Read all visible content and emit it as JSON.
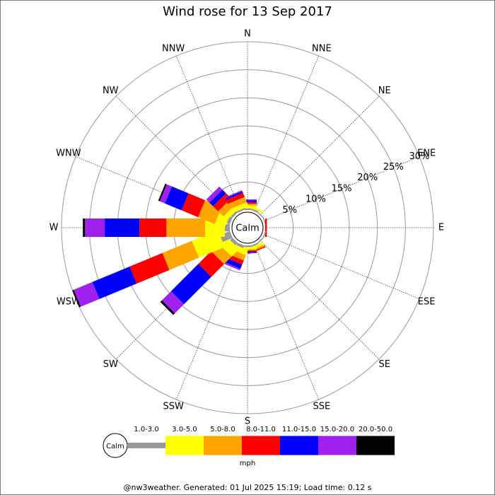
{
  "chart_data": {
    "type": "wind_rose",
    "title": "Wind rose for 13 Sep 2017",
    "directions": [
      "N",
      "NNE",
      "NE",
      "ENE",
      "E",
      "ESE",
      "SE",
      "SSE",
      "S",
      "SSW",
      "SW",
      "WSW",
      "W",
      "WNW",
      "NW",
      "NNW"
    ],
    "ylim": [
      0,
      30
    ],
    "yticks": [
      {
        "value": 5,
        "label": "5%"
      },
      {
        "value": 10,
        "label": "10%"
      },
      {
        "value": 15,
        "label": "15%"
      },
      {
        "value": 20,
        "label": "20%"
      },
      {
        "value": 25,
        "label": "25%"
      },
      {
        "value": 30,
        "label": "30%"
      }
    ],
    "calm_label": "Calm",
    "unit": "mph",
    "series": [
      {
        "name": "1.0-3.0",
        "color": "#999999",
        "values": [
          0.3,
          0.3,
          0.2,
          0.2,
          0,
          0.2,
          0.2,
          0.3,
          0.3,
          0.5,
          0.6,
          1.9,
          0.9,
          0.6,
          0.4,
          0.3
        ]
      },
      {
        "name": "3.0-5.0",
        "color": "#ffff00",
        "values": [
          0.5,
          0.3,
          0,
          0,
          0,
          0,
          0,
          0.5,
          0.4,
          1.0,
          1.9,
          5.0,
          3.5,
          1.9,
          0.9,
          0.8
        ]
      },
      {
        "name": "5.0-8.0",
        "color": "#ffa500",
        "values": [
          0.3,
          0,
          0,
          0,
          0,
          0,
          0,
          0.3,
          0.2,
          1.0,
          1.9,
          5.7,
          6.9,
          3.2,
          1.3,
          1.0
        ]
      },
      {
        "name": "8.0-11.0",
        "color": "#ff0000",
        "values": [
          0.3,
          0,
          0,
          0,
          0.3,
          0,
          0,
          0.2,
          0.2,
          0.8,
          3.2,
          6.3,
          4.8,
          3.2,
          1.3,
          0.8
        ]
      },
      {
        "name": "11.0-15.0",
        "color": "#0000ff",
        "values": [
          0.3,
          0,
          0,
          0,
          0,
          0,
          0,
          0,
          0.2,
          0.8,
          6.9,
          7.2,
          6.2,
          3.2,
          0.9,
          0.3
        ]
      },
      {
        "name": "15.0-20.0",
        "color": "#a020f0",
        "values": [
          0.2,
          0,
          0,
          0,
          0,
          0,
          0,
          0,
          0.1,
          0.3,
          2.3,
          3.6,
          3.5,
          1.0,
          0.8,
          0.2
        ]
      },
      {
        "name": "20.0-50.0",
        "color": "#000000",
        "values": [
          0,
          0,
          0,
          0,
          0,
          0,
          0,
          0,
          0,
          0,
          0.4,
          0.3,
          0.4,
          0.3,
          0,
          0
        ]
      }
    ]
  },
  "footer": "@nw3weather. Generated: 01 Jul 2025 15:19; Load time: 0.12 s"
}
